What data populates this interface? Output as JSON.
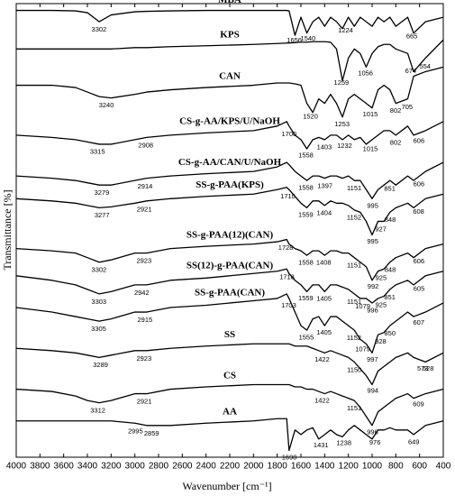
{
  "chart_data": {
    "type": "line",
    "x_label": "Wavenumber [cm⁻¹]",
    "y_label": "Transmittance [%]",
    "xlim": [
      4000,
      400
    ],
    "ylim": [
      0,
      100
    ],
    "xticks": [
      4000,
      3800,
      3600,
      3400,
      3200,
      3000,
      2800,
      2600,
      2400,
      2200,
      2000,
      1800,
      1600,
      1400,
      1200,
      1000,
      800,
      600,
      400
    ],
    "color": "#000000",
    "x": [
      4000,
      3700,
      3500,
      3400,
      3300,
      3200,
      3000,
      2900,
      2700,
      2400,
      2000,
      1800,
      1720,
      1700,
      1650,
      1600,
      1550,
      1500,
      1450,
      1400,
      1350,
      1300,
      1250,
      1200,
      1150,
      1100,
      1050,
      1000,
      950,
      900,
      850,
      800,
      700,
      650,
      550,
      400
    ],
    "series": [
      {
        "name": "MBA",
        "values": [
          98.5,
          98.5,
          98.4,
          98,
          96,
          97.5,
          98.2,
          98.3,
          98.4,
          98.5,
          98.5,
          98.5,
          98.5,
          98.4,
          93,
          97,
          93.5,
          96,
          97,
          95,
          97,
          96,
          94.5,
          97,
          95,
          97,
          96,
          95,
          97,
          96,
          97,
          95,
          97,
          93.5,
          96,
          97
        ],
        "peaks": [
          3302,
          1656,
          1540,
          1224,
          665
        ]
      },
      {
        "name": "KPS",
        "values": [
          90,
          90,
          90,
          90,
          90,
          90,
          90.3,
          90.3,
          90.5,
          90.7,
          91,
          91.2,
          91.3,
          91.3,
          91.4,
          91.5,
          91.5,
          91.6,
          91.6,
          91.6,
          91.5,
          90,
          83,
          88,
          90,
          89,
          86,
          89,
          90.5,
          91,
          91,
          90,
          89,
          85,
          88,
          92
        ],
        "peaks": [
          1259,
          1056,
          674,
          554
        ]
      },
      {
        "name": "CAN",
        "values": [
          82,
          82,
          81.5,
          80.5,
          79.5,
          79.2,
          80,
          80.5,
          81,
          81.5,
          82,
          82.5,
          82.5,
          82.5,
          82.3,
          82,
          78,
          76,
          79,
          78,
          80,
          78,
          75,
          79,
          80,
          79,
          78,
          77,
          81,
          82,
          81,
          78,
          79,
          84,
          85,
          86
        ],
        "peaks": [
          3240,
          1520,
          1253,
          1015,
          802,
          705
        ]
      },
      {
        "name": "CS-g-AA/KPS/U/NaOH",
        "values": [
          71,
          70.5,
          70,
          69.5,
          69,
          69,
          70,
          70.5,
          71,
          71.5,
          72,
          73,
          74,
          73,
          71,
          70,
          68,
          70,
          70.5,
          70,
          71,
          71,
          70,
          71,
          70,
          70.5,
          69,
          70,
          71,
          72,
          72,
          71,
          73,
          71,
          72,
          74
        ],
        "peaks": [
          3315,
          2908,
          1700,
          1558,
          1403,
          1232,
          1015,
          802,
          606
        ]
      },
      {
        "name": "CS-g-AA/CAN/U/NaOH",
        "values": [
          62,
          61.5,
          61,
          60.5,
          60,
          60,
          61,
          61.5,
          62,
          62.5,
          63,
          64,
          65,
          64.5,
          63,
          62,
          61,
          62,
          62,
          61.5,
          62,
          62,
          61.5,
          62,
          61,
          61,
          59,
          57,
          59,
          60,
          61,
          60,
          62,
          61,
          63,
          65
        ],
        "peaks": [
          3279,
          2914,
          1558,
          1397,
          1151,
          995,
          851,
          606
        ]
      },
      {
        "name": "SS-g-PAA(KPS)",
        "values": [
          57,
          56.5,
          56,
          55.5,
          55,
          55.2,
          56,
          56.5,
          57,
          57.5,
          58,
          59,
          59.5,
          59,
          57.5,
          56,
          55,
          56.5,
          56.5,
          55.5,
          56.5,
          56,
          56,
          55.5,
          54.5,
          54,
          52,
          49,
          52,
          52,
          54,
          55,
          56,
          55,
          57,
          58
        ],
        "peaks": [
          3277,
          2921,
          1710,
          1559,
          1404,
          1152,
          995,
          927,
          848,
          608
        ]
      },
      {
        "name": "SS-g-PAA(12)(CAN)",
        "values": [
          46,
          45.5,
          45,
          44,
          43,
          43.5,
          45,
          45,
          46,
          46.5,
          47,
          47.5,
          48,
          47,
          46,
          45.5,
          44.5,
          45.5,
          45.5,
          44.5,
          45.5,
          45.5,
          45,
          45,
          44,
          43,
          42,
          39,
          41,
          41.5,
          43,
          44,
          45,
          44,
          46,
          47
        ],
        "peaks": [
          3302,
          2923,
          1728,
          1558,
          1408,
          1151,
          992,
          925,
          848,
          606
        ]
      },
      {
        "name": "SS(12)-g-PAA(CAN)",
        "values": [
          40,
          39,
          38,
          37,
          36,
          36.5,
          38,
          38,
          39,
          39.5,
          40.5,
          41,
          41.5,
          40.5,
          39,
          38,
          36.5,
          38,
          38,
          36.5,
          38,
          38,
          37.5,
          37,
          36,
          35,
          35,
          34,
          35,
          35.5,
          37,
          38,
          39,
          38,
          40,
          41
        ],
        "peaks": [
          3303,
          2942,
          1718,
          1559,
          1405,
          1151,
          1079,
          996,
          925,
          851,
          605
        ]
      },
      {
        "name": "SS-g-PAA(CAN)",
        "values": [
          33,
          32,
          31,
          30.5,
          30,
          30.5,
          32,
          32,
          33,
          33.5,
          34.5,
          35,
          36,
          35,
          32,
          29,
          28,
          30.5,
          31,
          29,
          31,
          31,
          30,
          29,
          28,
          26,
          25,
          23,
          27,
          27.5,
          29,
          30,
          32,
          31,
          32,
          34
        ],
        "peaks": [
          3305,
          2915,
          1703,
          1555,
          1405,
          1152,
          1079,
          997,
          928,
          850,
          607
        ]
      },
      {
        "name": "SS",
        "values": [
          24,
          23.5,
          23,
          22.5,
          22,
          22.5,
          23.5,
          23.5,
          24,
          24.5,
          25,
          25,
          25,
          25,
          24.5,
          24.5,
          24.5,
          24,
          23.5,
          23,
          23.5,
          23,
          22.5,
          22,
          21,
          19.5,
          18,
          16,
          19,
          20,
          21,
          22,
          23,
          22,
          21,
          23
        ],
        "peaks": [
          3289,
          2923,
          1422,
          1150,
          994,
          573,
          528
        ]
      },
      {
        "name": "CS",
        "values": [
          15,
          14.5,
          13.5,
          12.5,
          12,
          12.5,
          14,
          14,
          15,
          15.5,
          16,
          16,
          16,
          16,
          15.5,
          15.5,
          15,
          15,
          14.5,
          14,
          14.5,
          14,
          13.5,
          13,
          12.5,
          11,
          9,
          7,
          10,
          11,
          12,
          13,
          14,
          13,
          14,
          15
        ],
        "peaks": [
          3312,
          2921,
          1422,
          1151,
          996,
          609
        ]
      },
      {
        "name": "AA",
        "values": [
          8,
          8,
          8,
          8,
          8,
          8,
          7.5,
          7,
          7,
          7.5,
          8,
          8.5,
          8.5,
          1.5,
          6,
          5,
          6,
          6.5,
          4,
          5,
          6,
          5,
          4.5,
          6,
          7,
          6,
          5,
          4,
          6,
          6,
          6.5,
          6,
          6,
          5,
          7,
          8
        ],
        "peaks": [
          2995,
          2859,
          1698,
          1431,
          1238,
          976,
          649
        ]
      }
    ]
  }
}
